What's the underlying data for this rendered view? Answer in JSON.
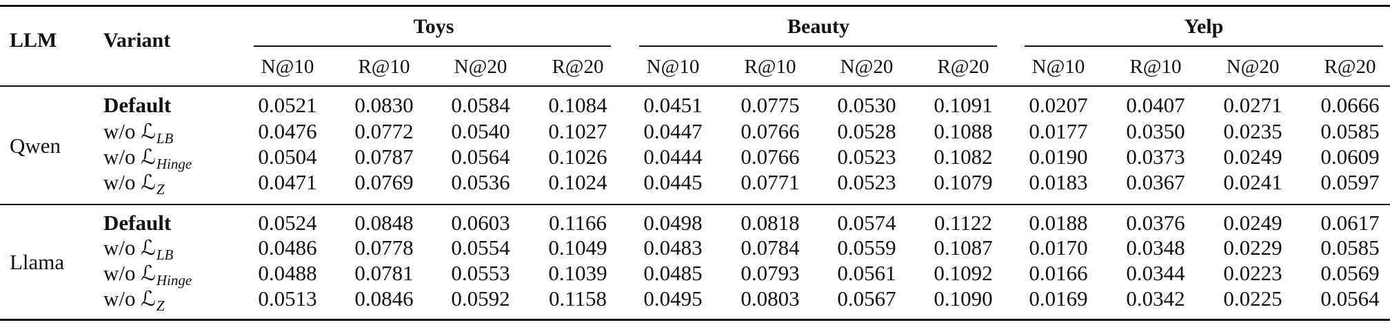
{
  "headers": {
    "llm": "LLM",
    "variant": "Variant"
  },
  "datasets": [
    "Toys",
    "Beauty",
    "Yelp"
  ],
  "metrics": [
    "N@10",
    "R@10",
    "N@20",
    "R@20"
  ],
  "blocks": [
    {
      "llm": "Qwen",
      "rows": [
        {
          "prefix": "",
          "label": "Default",
          "bold": true,
          "sub": "",
          "values": [
            "0.0521",
            "0.0830",
            "0.0584",
            "0.1084",
            "0.0451",
            "0.0775",
            "0.0530",
            "0.1091",
            "0.0207",
            "0.0407",
            "0.0271",
            "0.0666"
          ]
        },
        {
          "prefix": "w/o ",
          "label": "ℒ",
          "bold": false,
          "sub": "LB",
          "values": [
            "0.0476",
            "0.0772",
            "0.0540",
            "0.1027",
            "0.0447",
            "0.0766",
            "0.0528",
            "0.1088",
            "0.0177",
            "0.0350",
            "0.0235",
            "0.0585"
          ]
        },
        {
          "prefix": "w/o ",
          "label": "ℒ",
          "bold": false,
          "sub": "Hinge",
          "values": [
            "0.0504",
            "0.0787",
            "0.0564",
            "0.1026",
            "0.0444",
            "0.0766",
            "0.0523",
            "0.1082",
            "0.0190",
            "0.0373",
            "0.0249",
            "0.0609"
          ]
        },
        {
          "prefix": "w/o ",
          "label": "ℒ",
          "bold": false,
          "sub": "Z",
          "values": [
            "0.0471",
            "0.0769",
            "0.0536",
            "0.1024",
            "0.0445",
            "0.0771",
            "0.0523",
            "0.1079",
            "0.0183",
            "0.0367",
            "0.0241",
            "0.0597"
          ]
        }
      ]
    },
    {
      "llm": "Llama",
      "rows": [
        {
          "prefix": "",
          "label": "Default",
          "bold": true,
          "sub": "",
          "values": [
            "0.0524",
            "0.0848",
            "0.0603",
            "0.1166",
            "0.0498",
            "0.0818",
            "0.0574",
            "0.1122",
            "0.0188",
            "0.0376",
            "0.0249",
            "0.0617"
          ]
        },
        {
          "prefix": "w/o ",
          "label": "ℒ",
          "bold": false,
          "sub": "LB",
          "values": [
            "0.0486",
            "0.0778",
            "0.0554",
            "0.1049",
            "0.0483",
            "0.0784",
            "0.0559",
            "0.1087",
            "0.0170",
            "0.0348",
            "0.0229",
            "0.0585"
          ]
        },
        {
          "prefix": "w/o ",
          "label": "ℒ",
          "bold": false,
          "sub": "Hinge",
          "values": [
            "0.0488",
            "0.0781",
            "0.0553",
            "0.1039",
            "0.0485",
            "0.0793",
            "0.0561",
            "0.1092",
            "0.0166",
            "0.0344",
            "0.0223",
            "0.0569"
          ]
        },
        {
          "prefix": "w/o ",
          "label": "ℒ",
          "bold": false,
          "sub": "Z",
          "values": [
            "0.0513",
            "0.0846",
            "0.0592",
            "0.1158",
            "0.0495",
            "0.0803",
            "0.0567",
            "0.1090",
            "0.0169",
            "0.0342",
            "0.0225",
            "0.0564"
          ]
        }
      ]
    }
  ]
}
